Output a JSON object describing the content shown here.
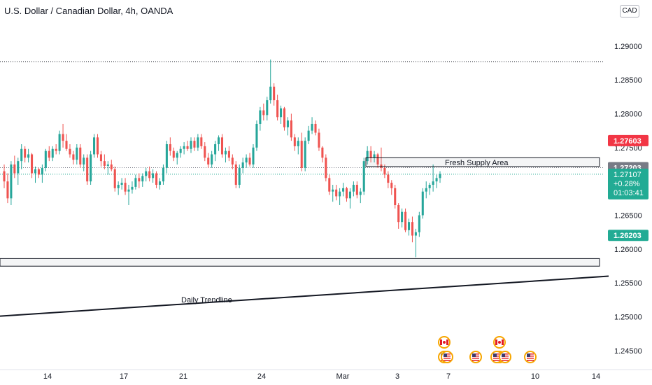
{
  "header": {
    "title": "U.S. Dollar / Canadian Dollar, 4h, OANDA",
    "currency": "CAD"
  },
  "colors": {
    "up": "#26a69a",
    "down": "#ef5350",
    "axis_text": "#131722",
    "grid": "#e0e3eb"
  },
  "chart_data": {
    "type": "candlestick",
    "ylim": [
      1.2422,
      1.2968
    ],
    "y_ticks": [
      "1.29000",
      "1.28500",
      "1.28000",
      "1.27500",
      "1.27000",
      "1.26500",
      "1.26000",
      "1.25500",
      "1.25000",
      "1.24500"
    ],
    "x_ticks": [
      "14",
      "17",
      "21",
      "24",
      "Mar",
      "3",
      "7",
      "10",
      "14"
    ],
    "candles": [
      [
        1.2715,
        1.2725,
        1.269,
        1.27
      ],
      [
        1.27,
        1.2712,
        1.2668,
        1.2675
      ],
      [
        1.2675,
        1.273,
        1.2665,
        1.2725
      ],
      [
        1.2725,
        1.2738,
        1.2705,
        1.2712
      ],
      [
        1.2712,
        1.2735,
        1.2695,
        1.273
      ],
      [
        1.273,
        1.2755,
        1.2718,
        1.2748
      ],
      [
        1.2748,
        1.2752,
        1.2728,
        1.2735
      ],
      [
        1.2735,
        1.2748,
        1.2728,
        1.274
      ],
      [
        1.274,
        1.2742,
        1.2705,
        1.2712
      ],
      [
        1.2712,
        1.2722,
        1.2698,
        1.2718
      ],
      [
        1.2718,
        1.272,
        1.2705,
        1.271
      ],
      [
        1.271,
        1.2725,
        1.2698,
        1.272
      ],
      [
        1.272,
        1.2748,
        1.2715,
        1.2745
      ],
      [
        1.2745,
        1.2752,
        1.273,
        1.2735
      ],
      [
        1.2735,
        1.2752,
        1.273,
        1.2748
      ],
      [
        1.2748,
        1.2755,
        1.274,
        1.2745
      ],
      [
        1.2745,
        1.2775,
        1.274,
        1.277
      ],
      [
        1.277,
        1.2785,
        1.275,
        1.276
      ],
      [
        1.276,
        1.277,
        1.2745,
        1.2748
      ],
      [
        1.2748,
        1.2755,
        1.2735,
        1.274
      ],
      [
        1.274,
        1.2745,
        1.2725,
        1.2732
      ],
      [
        1.2732,
        1.2755,
        1.2725,
        1.275
      ],
      [
        1.275,
        1.2755,
        1.272,
        1.2725
      ],
      [
        1.2725,
        1.274,
        1.2715,
        1.2735
      ],
      [
        1.2735,
        1.274,
        1.2695,
        1.27
      ],
      [
        1.27,
        1.2745,
        1.2695,
        1.274
      ],
      [
        1.274,
        1.277,
        1.2735,
        1.2765
      ],
      [
        1.2765,
        1.277,
        1.2735,
        1.274
      ],
      [
        1.274,
        1.2745,
        1.2722,
        1.273
      ],
      [
        1.273,
        1.274,
        1.2718,
        1.2723
      ],
      [
        1.2723,
        1.273,
        1.271,
        1.2725
      ],
      [
        1.2725,
        1.2732,
        1.2715,
        1.2718
      ],
      [
        1.2718,
        1.2722,
        1.2685,
        1.269
      ],
      [
        1.269,
        1.27,
        1.268,
        1.2695
      ],
      [
        1.2695,
        1.2705,
        1.2688,
        1.2698
      ],
      [
        1.2698,
        1.2705,
        1.268,
        1.2685
      ],
      [
        1.2685,
        1.2695,
        1.2665,
        1.2688
      ],
      [
        1.2688,
        1.27,
        1.2682,
        1.2692
      ],
      [
        1.2692,
        1.271,
        1.2688,
        1.2705
      ],
      [
        1.2705,
        1.2712,
        1.269,
        1.27
      ],
      [
        1.27,
        1.2712,
        1.2692,
        1.2708
      ],
      [
        1.2708,
        1.272,
        1.27,
        1.2715
      ],
      [
        1.2715,
        1.2722,
        1.27,
        1.2705
      ],
      [
        1.2705,
        1.2718,
        1.2698,
        1.2712
      ],
      [
        1.2712,
        1.2715,
        1.269,
        1.2695
      ],
      [
        1.2695,
        1.2705,
        1.2688,
        1.27
      ],
      [
        1.27,
        1.2725,
        1.2695,
        1.272
      ],
      [
        1.272,
        1.276,
        1.2712,
        1.2755
      ],
      [
        1.2755,
        1.2765,
        1.2738,
        1.2745
      ],
      [
        1.2745,
        1.275,
        1.273,
        1.2735
      ],
      [
        1.2735,
        1.2745,
        1.2725,
        1.2742
      ],
      [
        1.2742,
        1.2752,
        1.2735,
        1.2748
      ],
      [
        1.2748,
        1.2758,
        1.274,
        1.2752
      ],
      [
        1.2752,
        1.276,
        1.2745,
        1.2748
      ],
      [
        1.2748,
        1.2765,
        1.2742,
        1.276
      ],
      [
        1.276,
        1.2765,
        1.2745,
        1.275
      ],
      [
        1.275,
        1.277,
        1.2745,
        1.2765
      ],
      [
        1.2765,
        1.277,
        1.2748,
        1.2752
      ],
      [
        1.2752,
        1.2758,
        1.273,
        1.2735
      ],
      [
        1.2735,
        1.2742,
        1.272,
        1.2725
      ],
      [
        1.2725,
        1.2745,
        1.272,
        1.274
      ],
      [
        1.274,
        1.276,
        1.273,
        1.2755
      ],
      [
        1.2755,
        1.2768,
        1.2745,
        1.2765
      ],
      [
        1.2765,
        1.277,
        1.2735,
        1.274
      ],
      [
        1.274,
        1.275,
        1.2728,
        1.2745
      ],
      [
        1.2745,
        1.2752,
        1.273,
        1.2735
      ],
      [
        1.2735,
        1.274,
        1.2718,
        1.2725
      ],
      [
        1.2725,
        1.273,
        1.269,
        1.2695
      ],
      [
        1.2695,
        1.2725,
        1.269,
        1.272
      ],
      [
        1.272,
        1.2735,
        1.2712,
        1.2728
      ],
      [
        1.2728,
        1.274,
        1.272,
        1.2735
      ],
      [
        1.2735,
        1.2742,
        1.2722,
        1.2725
      ],
      [
        1.2725,
        1.2755,
        1.272,
        1.275
      ],
      [
        1.275,
        1.279,
        1.2745,
        1.2785
      ],
      [
        1.2785,
        1.281,
        1.2775,
        1.2805
      ],
      [
        1.2805,
        1.2815,
        1.279,
        1.2798
      ],
      [
        1.2798,
        1.2825,
        1.279,
        1.282
      ],
      [
        1.282,
        1.288,
        1.2815,
        1.284
      ],
      [
        1.284,
        1.2845,
        1.2812,
        1.282
      ],
      [
        1.282,
        1.2828,
        1.279,
        1.2795
      ],
      [
        1.2795,
        1.2812,
        1.2785,
        1.2808
      ],
      [
        1.2808,
        1.281,
        1.2775,
        1.278
      ],
      [
        1.278,
        1.2795,
        1.2768,
        1.279
      ],
      [
        1.279,
        1.28,
        1.276,
        1.2765
      ],
      [
        1.2765,
        1.277,
        1.2745,
        1.2752
      ],
      [
        1.2752,
        1.2765,
        1.274,
        1.276
      ],
      [
        1.276,
        1.2772,
        1.2715,
        1.272
      ],
      [
        1.272,
        1.2765,
        1.2715,
        1.276
      ],
      [
        1.276,
        1.2782,
        1.2755,
        1.2775
      ],
      [
        1.2775,
        1.2795,
        1.277,
        1.2785
      ],
      [
        1.2785,
        1.279,
        1.2768,
        1.2772
      ],
      [
        1.2772,
        1.2778,
        1.2745,
        1.275
      ],
      [
        1.275,
        1.2752,
        1.2728,
        1.2735
      ],
      [
        1.2735,
        1.274,
        1.27,
        1.2705
      ],
      [
        1.2705,
        1.271,
        1.268,
        1.2685
      ],
      [
        1.2685,
        1.2695,
        1.267,
        1.2688
      ],
      [
        1.2688,
        1.2695,
        1.2672,
        1.2678
      ],
      [
        1.2678,
        1.269,
        1.2665,
        1.2685
      ],
      [
        1.2685,
        1.2698,
        1.2678,
        1.269
      ],
      [
        1.269,
        1.2692,
        1.267,
        1.2675
      ],
      [
        1.2675,
        1.269,
        1.266,
        1.2685
      ],
      [
        1.2685,
        1.27,
        1.2678,
        1.2695
      ],
      [
        1.2695,
        1.27,
        1.2675,
        1.268
      ],
      [
        1.268,
        1.269,
        1.2668,
        1.2685
      ],
      [
        1.2685,
        1.2735,
        1.268,
        1.273
      ],
      [
        1.273,
        1.2752,
        1.2725,
        1.2745
      ],
      [
        1.2745,
        1.2752,
        1.2728,
        1.2735
      ],
      [
        1.2735,
        1.2745,
        1.2728,
        1.274
      ],
      [
        1.274,
        1.2742,
        1.272,
        1.2725
      ],
      [
        1.2725,
        1.275,
        1.2715,
        1.272
      ],
      [
        1.272,
        1.2725,
        1.2705,
        1.271
      ],
      [
        1.271,
        1.2715,
        1.269,
        1.2698
      ],
      [
        1.2698,
        1.2702,
        1.268,
        1.269
      ],
      [
        1.269,
        1.2695,
        1.266,
        1.2665
      ],
      [
        1.2665,
        1.2668,
        1.263,
        1.264
      ],
      [
        1.264,
        1.266,
        1.2632,
        1.2655
      ],
      [
        1.2655,
        1.266,
        1.2625,
        1.2628
      ],
      [
        1.2628,
        1.2645,
        1.262,
        1.264
      ],
      [
        1.264,
        1.2648,
        1.261,
        1.262
      ],
      [
        1.262,
        1.263,
        1.2588,
        1.2625
      ],
      [
        1.2625,
        1.2655,
        1.2618,
        1.265
      ],
      [
        1.265,
        1.269,
        1.2645,
        1.2685
      ],
      [
        1.2685,
        1.27,
        1.2675,
        1.269
      ],
      [
        1.269,
        1.2698,
        1.268,
        1.2695
      ],
      [
        1.2695,
        1.2725,
        1.2685,
        1.27
      ],
      [
        1.27,
        1.271,
        1.269,
        1.2705
      ],
      [
        1.2705,
        1.2715,
        1.2698,
        1.2711
      ]
    ],
    "trade_box": {
      "stop": 1.27603,
      "entry": 1.27203,
      "target": 1.26203,
      "x_start": "5",
      "x_end": "13"
    },
    "zones": [
      {
        "label": "Fresh Supply Area",
        "y_low": 1.2722,
        "y_high": 1.2735
      },
      {
        "label": "",
        "y_low": 1.25748,
        "y_high": 1.2586
      }
    ],
    "trendline": {
      "label": "Daily Trendline",
      "y_start": 1.2501,
      "y_end": 1.256
    },
    "dotted_levels": [
      1.2877
    ],
    "price_labels": [
      {
        "value": 1.27603,
        "text": "1.27603",
        "color": "#f23645"
      },
      {
        "value": 1.27203,
        "text": "1.27203",
        "color": "#787b86"
      },
      {
        "value": 1.27107,
        "text": "1.27107",
        "color": "#22ab94",
        "lines": [
          "1.27107",
          "+0.28%",
          "01:03:41"
        ]
      },
      {
        "value": 1.26203,
        "text": "1.26203",
        "color": "#22ab94"
      }
    ],
    "events": [
      {
        "x_tick": "5",
        "stack": [
          "ca",
          "us"
        ]
      },
      {
        "x_tick": "6",
        "stack": [
          "us"
        ]
      },
      {
        "x_tick": "7",
        "stack": [
          "ca",
          "us"
        ]
      },
      {
        "x_tick": "8",
        "stack": [
          "us"
        ]
      }
    ]
  }
}
